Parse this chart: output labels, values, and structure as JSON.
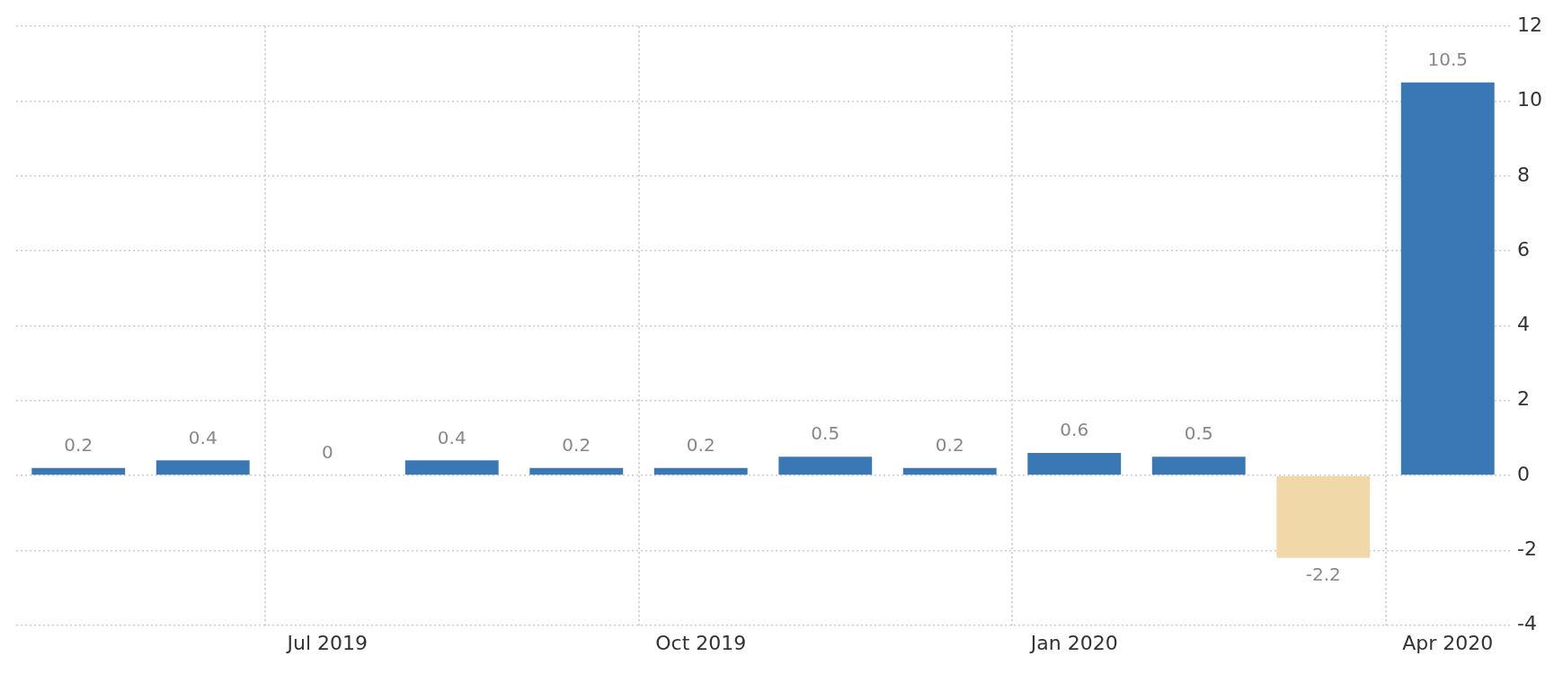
{
  "chart_data": {
    "type": "bar",
    "categories": [
      null,
      null,
      "Jul 2019",
      null,
      null,
      "Oct 2019",
      null,
      null,
      "Jan 2020",
      null,
      null,
      "Apr 2020"
    ],
    "values": [
      0.2,
      0.4,
      0,
      0.4,
      0.2,
      0.2,
      0.5,
      0.2,
      0.6,
      0.5,
      -2.2,
      10.5
    ],
    "colors": [
      "#3a78b5",
      "#3a78b5",
      "#3a78b5",
      "#3a78b5",
      "#3a78b5",
      "#3a78b5",
      "#3a78b5",
      "#3a78b5",
      "#3a78b5",
      "#3a78b5",
      "#f0d8a8",
      "#3a78b5"
    ],
    "ylim": [
      -4,
      12
    ],
    "yticks": [
      -4,
      -2,
      0,
      2,
      4,
      6,
      8,
      10,
      12
    ],
    "grid": true,
    "data_labels": true,
    "legend": false
  }
}
